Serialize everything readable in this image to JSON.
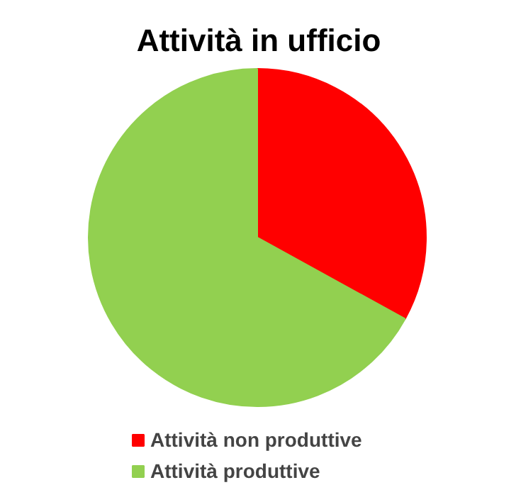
{
  "chart_data": {
    "type": "pie",
    "title": "Attività in ufficio",
    "categories": [
      "Attività non produttive",
      "Attività produttive"
    ],
    "values": [
      33,
      67
    ],
    "colors": [
      "#ff0000",
      "#92d050"
    ],
    "legend": "bottom"
  }
}
